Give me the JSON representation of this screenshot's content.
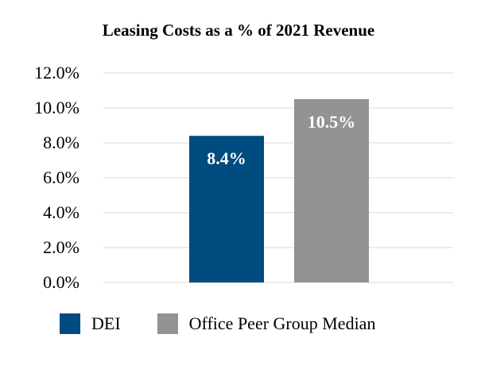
{
  "chart_data": {
    "type": "bar",
    "title": "Leasing Costs as a % of 2021 Revenue",
    "xlabel": "",
    "ylabel": "",
    "categories": [
      "DEI",
      "Office Peer Group Median"
    ],
    "values": [
      8.4,
      10.5
    ],
    "data_labels": [
      "8.4%",
      "10.5%"
    ],
    "colors": [
      "#004B80",
      "#939393"
    ],
    "ylim": [
      0,
      12
    ],
    "yticks": [
      0,
      2,
      4,
      6,
      8,
      10,
      12
    ],
    "ytick_labels": [
      "0.0%",
      "2.0%",
      "4.0%",
      "6.0%",
      "8.0%",
      "10.0%",
      "12.0%"
    ],
    "grid": true,
    "legend_position": "bottom"
  }
}
